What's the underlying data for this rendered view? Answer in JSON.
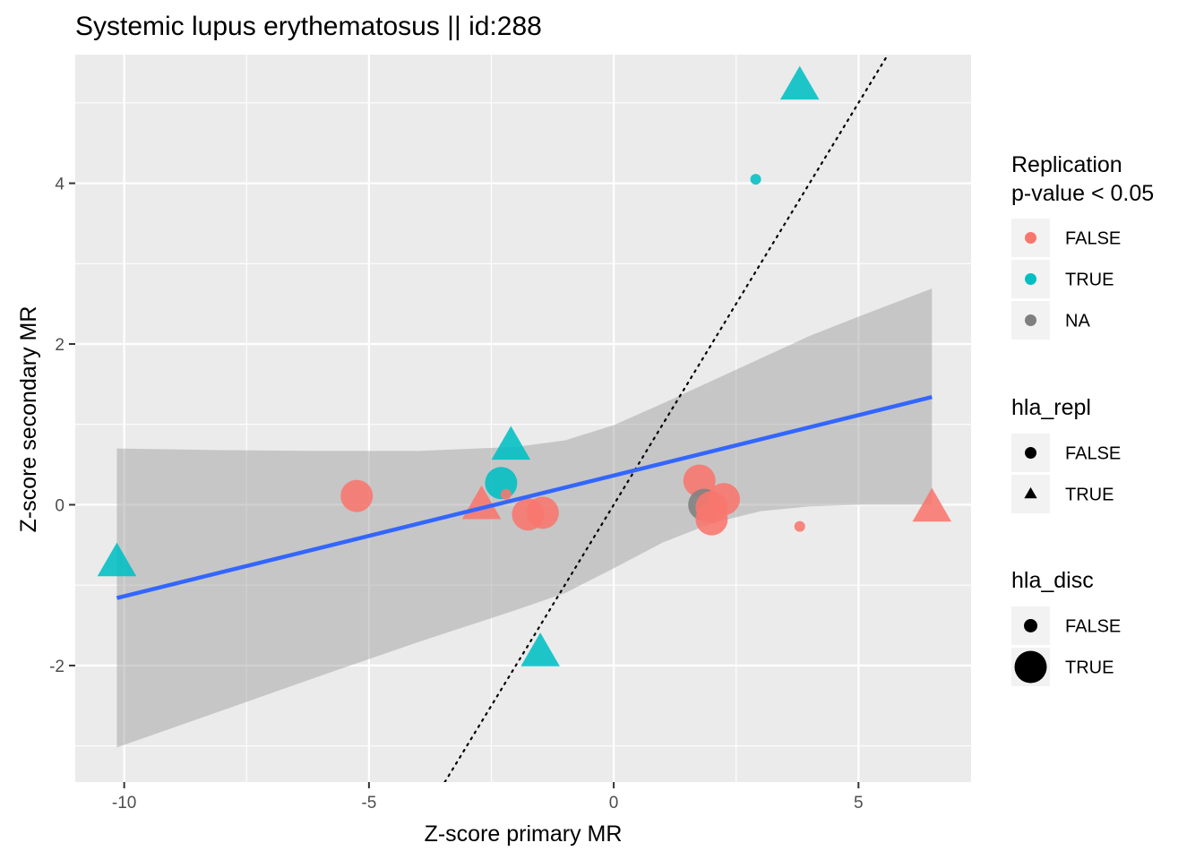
{
  "chart_data": {
    "type": "scatter",
    "title": "Systemic lupus erythematosus || id:288",
    "xlabel": "Z-score primary MR",
    "ylabel": "Z-score secondary MR",
    "xlim": [
      -11,
      7.3
    ],
    "ylim": [
      -3.45,
      5.6
    ],
    "x_ticks": [
      -10,
      -5,
      0,
      5
    ],
    "x_tick_labels": [
      "-10",
      "-5",
      "0",
      "5"
    ],
    "y_ticks": [
      -2,
      0,
      2,
      4
    ],
    "y_tick_labels": [
      "-2",
      "0",
      "2",
      "4"
    ],
    "grid": true,
    "legend_position": "right",
    "colors": {
      "FALSE": "#F8766D",
      "TRUE": "#00BFC4",
      "NA": "#7F7F7F",
      "fit": "#3366FF",
      "ribbon": "#999999",
      "panel": "#EBEBEB"
    },
    "legends": [
      {
        "title": "Replication\np-value < 0.05",
        "kind": "color",
        "entries": [
          {
            "label": "FALSE",
            "color": "#F8766D"
          },
          {
            "label": "TRUE",
            "color": "#00BFC4"
          },
          {
            "label": "NA",
            "color": "#7F7F7F"
          }
        ]
      },
      {
        "title": "hla_repl",
        "kind": "shape",
        "entries": [
          {
            "label": "FALSE",
            "shape": "circle"
          },
          {
            "label": "TRUE",
            "shape": "triangle"
          }
        ]
      },
      {
        "title": "hla_disc",
        "kind": "size",
        "entries": [
          {
            "label": "FALSE",
            "size": "small"
          },
          {
            "label": "TRUE",
            "size": "large"
          }
        ]
      }
    ],
    "points": [
      {
        "x": 3.8,
        "y": 5.2,
        "replication": "TRUE",
        "hla_repl": "TRUE",
        "hla_disc": "TRUE"
      },
      {
        "x": 2.9,
        "y": 4.05,
        "replication": "TRUE",
        "hla_repl": "FALSE",
        "hla_disc": "FALSE"
      },
      {
        "x": -10.15,
        "y": -0.73,
        "replication": "TRUE",
        "hla_repl": "TRUE",
        "hla_disc": "TRUE"
      },
      {
        "x": -2.1,
        "y": 0.72,
        "replication": "TRUE",
        "hla_repl": "TRUE",
        "hla_disc": "TRUE"
      },
      {
        "x": -2.3,
        "y": 0.27,
        "replication": "TRUE",
        "hla_repl": "FALSE",
        "hla_disc": "TRUE"
      },
      {
        "x": -1.5,
        "y": -1.85,
        "replication": "TRUE",
        "hla_repl": "TRUE",
        "hla_disc": "TRUE"
      },
      {
        "x": -5.25,
        "y": 0.11,
        "replication": "FALSE",
        "hla_repl": "FALSE",
        "hla_disc": "TRUE"
      },
      {
        "x": -2.7,
        "y": -0.02,
        "replication": "FALSE",
        "hla_repl": "TRUE",
        "hla_disc": "TRUE"
      },
      {
        "x": -2.2,
        "y": 0.13,
        "replication": "FALSE",
        "hla_repl": "FALSE",
        "hla_disc": "FALSE"
      },
      {
        "x": -1.75,
        "y": -0.12,
        "replication": "FALSE",
        "hla_repl": "FALSE",
        "hla_disc": "TRUE"
      },
      {
        "x": -1.45,
        "y": -0.1,
        "replication": "FALSE",
        "hla_repl": "FALSE",
        "hla_disc": "TRUE"
      },
      {
        "x": 1.75,
        "y": 0.3,
        "replication": "FALSE",
        "hla_repl": "FALSE",
        "hla_disc": "TRUE"
      },
      {
        "x": 1.85,
        "y": 0.0,
        "replication": "NA",
        "hla_repl": "FALSE",
        "hla_disc": "TRUE"
      },
      {
        "x": 2.0,
        "y": -0.03,
        "replication": "FALSE",
        "hla_repl": "FALSE",
        "hla_disc": "TRUE"
      },
      {
        "x": 2.0,
        "y": -0.18,
        "replication": "FALSE",
        "hla_repl": "FALSE",
        "hla_disc": "TRUE"
      },
      {
        "x": 2.25,
        "y": 0.07,
        "replication": "FALSE",
        "hla_repl": "FALSE",
        "hla_disc": "TRUE"
      },
      {
        "x": 3.8,
        "y": -0.27,
        "replication": "FALSE",
        "hla_repl": "FALSE",
        "hla_disc": "FALSE"
      },
      {
        "x": 6.5,
        "y": -0.05,
        "replication": "FALSE",
        "hla_repl": "TRUE",
        "hla_disc": "TRUE"
      }
    ],
    "fit_line": {
      "x": [
        -10.15,
        6.5
      ],
      "y": [
        -1.16,
        1.34
      ]
    },
    "confidence_band": {
      "x": [
        -10.15,
        -8,
        -6,
        -4,
        -2,
        -1,
        0,
        1,
        2,
        3,
        4,
        5,
        6.5
      ],
      "lower": [
        -3.02,
        -2.56,
        -2.13,
        -1.71,
        -1.31,
        -1.1,
        -0.79,
        -0.47,
        -0.23,
        -0.08,
        -0.02,
        0.0,
        0.0
      ],
      "upper": [
        0.7,
        0.68,
        0.67,
        0.67,
        0.72,
        0.8,
        0.99,
        1.26,
        1.54,
        1.82,
        2.1,
        2.34,
        2.69
      ]
    },
    "reference_line": {
      "style": "dotted",
      "x": [
        -3.45,
        5.6
      ],
      "y": [
        -3.45,
        5.6
      ]
    }
  }
}
